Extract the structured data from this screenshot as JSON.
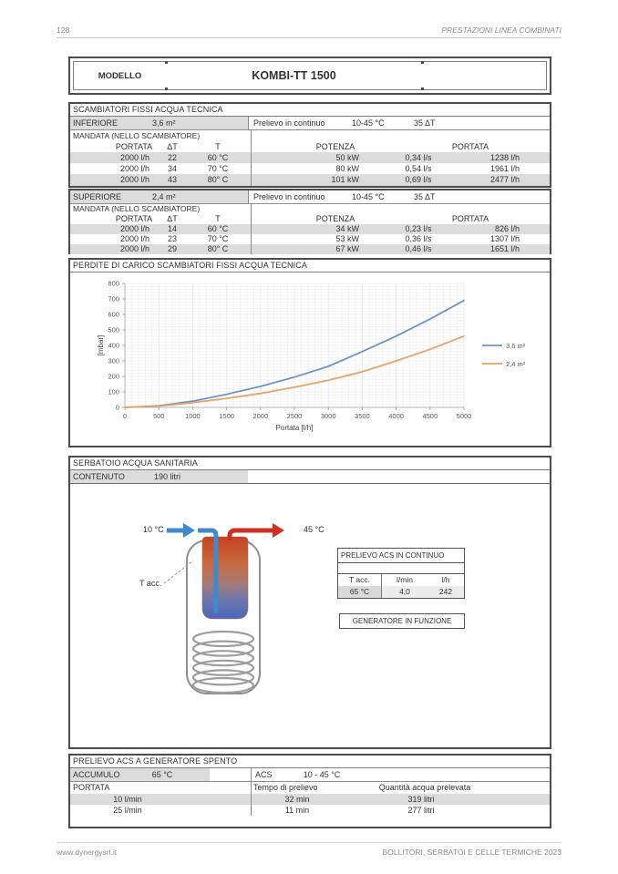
{
  "page": {
    "number": "128",
    "header_right": "PRESTAZIONI LINEA COMBINATI",
    "footer_left": "www.dynergysrl.it",
    "footer_right": "BOLLITORI, SERBATOI E CELLE TERMICHE 2023"
  },
  "model": {
    "label": "MODELLO",
    "name": "KOMBI-TT 1500"
  },
  "scambiatori": {
    "title": "SCAMBIATORI FISSI ACQUA TECNICA",
    "mandata_label": "MANDATA (NELLO SCAMBIATORE)",
    "headers": {
      "portata": "PORTATA",
      "dt": "ΔT",
      "t": "T",
      "potenza": "POTENZA",
      "portata2": "PORTATA"
    },
    "inferiore": {
      "label": "INFERIORE",
      "surface": "3,6 m²",
      "prelievo_label": "Prelievo in continuo",
      "range": "10-45 °C",
      "dt": "35 ΔT",
      "rows": [
        [
          "2000 l/h",
          "22",
          "60 °C",
          "50 kW",
          "0,34 l/s",
          "1238 l/h"
        ],
        [
          "2000 l/h",
          "34",
          "70 °C",
          "80 kW",
          "0,54 l/s",
          "1961 l/h"
        ],
        [
          "2000 l/h",
          "43",
          "80° C",
          "101 kW",
          "0,69 l/s",
          "2477 l/h"
        ]
      ]
    },
    "superiore": {
      "label": "SUPERIORE",
      "surface": "2,4 m²",
      "prelievo_label": "Prelievo in continuo",
      "range": "10-45 °C",
      "dt": "35 ΔT",
      "rows": [
        [
          "2000 l/h",
          "14",
          "60 °C",
          "34 kW",
          "0,23 l/s",
          "826 l/h"
        ],
        [
          "2000 l/h",
          "23",
          "70 °C",
          "53 kW",
          "0,36 l/s",
          "1307 l/h"
        ],
        [
          "2000 l/h",
          "29",
          "80° C",
          "67 kW",
          "0,46 l/s",
          "1651 l/h"
        ]
      ]
    }
  },
  "chart_data": {
    "type": "line",
    "title": "PERDITE DI CARICO SCAMBIATORI FISSI ACQUA TECNICA",
    "xlabel": "Portata [l/h]",
    "ylabel": "[mbar]",
    "x": [
      0,
      500,
      1000,
      1500,
      2000,
      2500,
      3000,
      3500,
      4000,
      4500,
      5000
    ],
    "series": [
      {
        "name": "3,6 m²",
        "color": "#6f94c4",
        "values": [
          0,
          10,
          40,
          85,
          135,
          195,
          265,
          360,
          460,
          570,
          690
        ]
      },
      {
        "name": "2,4 m²",
        "color": "#e9a266",
        "values": [
          0,
          8,
          30,
          58,
          90,
          130,
          175,
          230,
          300,
          375,
          460
        ]
      }
    ],
    "xlim": [
      0,
      5000
    ],
    "ylim": [
      0,
      800
    ],
    "xtick_step": 500,
    "ytick_step": 100,
    "grid": true,
    "legend_position": "right"
  },
  "serbatoio": {
    "title": "SERBATOIO ACQUA SANITARIA",
    "contenuto_label": "CONTENUTO",
    "contenuto_value": "190 litri",
    "diagram": {
      "inlet_temp": "10 °C",
      "outlet_temp": "45 °C",
      "tacc_label": "T acc."
    },
    "prelievo_table": {
      "title": "PRELIEVO ACS IN CONTINUO",
      "headers": [
        "T acc.",
        "l/min",
        "l/h"
      ],
      "row": [
        "65 °C",
        "4,0",
        "242"
      ]
    },
    "generatore_label": "GENERATORE IN FUNZIONE"
  },
  "prelievo_spento": {
    "title": "PRELIEVO ACS A GENERATORE SPENTO",
    "accumulo_label": "ACCUMULO",
    "accumulo_value": "65 °C",
    "acs_label": "ACS",
    "acs_value": "10 - 45 °C",
    "headers": [
      "PORTATA",
      "Tempo di prelievo",
      "Quantità acqua prelevata"
    ],
    "rows": [
      [
        "10 l/min",
        "32 min",
        "319 litri"
      ],
      [
        "25 l/min",
        "11 min",
        "277 litri"
      ]
    ]
  },
  "colors": {
    "series_blue": "#6f94c4",
    "series_orange": "#e9a266",
    "tank_hot": "#c64323",
    "tank_cold": "#4b66bb",
    "pipe_blue": "#3d8bce",
    "pipe_red": "#cd2f25",
    "row_shading": "#dcdcdc"
  }
}
